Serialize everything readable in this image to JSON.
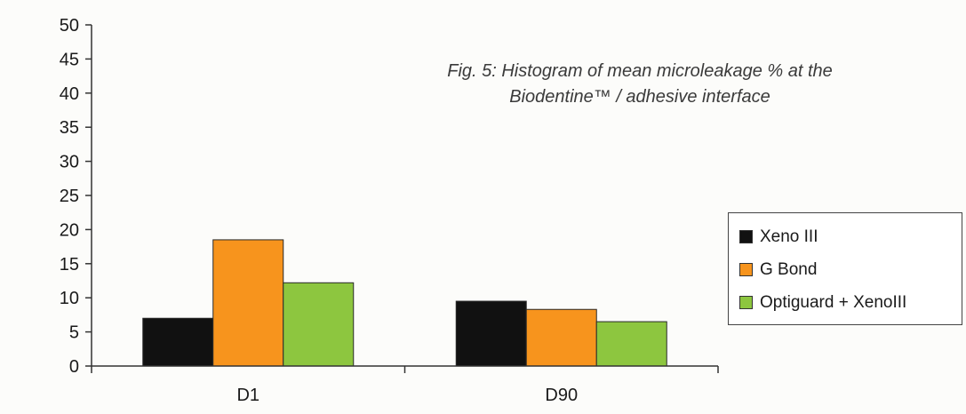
{
  "caption": {
    "line1": "Fig. 5: Histogram of mean microleakage % at the",
    "line2": "Biodentine™ / adhesive interface"
  },
  "chart_data": {
    "type": "bar",
    "title": "Fig. 5: Histogram of mean microleakage % at the Biodentine™ / adhesive interface",
    "categories": [
      "D1",
      "D90"
    ],
    "ylim": [
      0,
      50
    ],
    "yticks": [
      0,
      5,
      10,
      15,
      20,
      25,
      30,
      35,
      40,
      45,
      50
    ],
    "grid": false,
    "legend_position": "right",
    "series": [
      {
        "name": "Xeno III",
        "color": "#111111",
        "values": [
          7,
          9.5
        ]
      },
      {
        "name": "G Bond",
        "color": "#f7941d",
        "values": [
          18.5,
          8.3
        ]
      },
      {
        "name": "Optiguard + XenoIII",
        "color": "#8dc63f",
        "values": [
          12.2,
          6.5
        ]
      }
    ]
  }
}
